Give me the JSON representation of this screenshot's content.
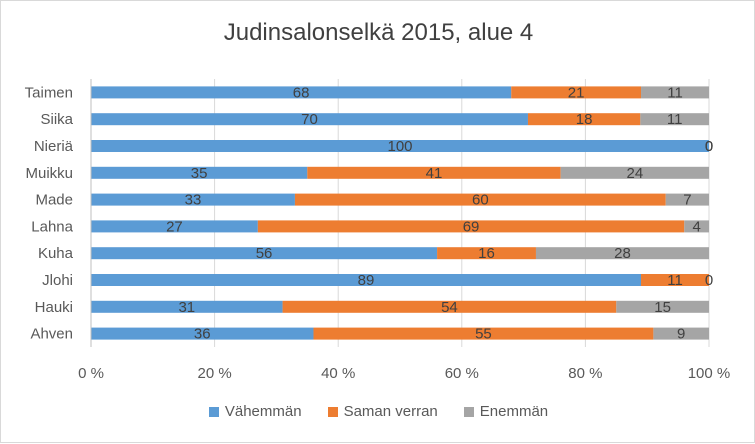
{
  "chart_data": {
    "type": "bar",
    "orientation": "horizontal",
    "stacked": "percent",
    "title": "Judinsalonselkä 2015, alue 4",
    "categories": [
      "Taimen",
      "Siika",
      "Nieriä",
      "Muikku",
      "Made",
      "Lahna",
      "Kuha",
      "Jlohi",
      "Hauki",
      "Ahven"
    ],
    "series": [
      {
        "name": "Vähemmän",
        "color": "#5b9bd5",
        "values": [
          68,
          70,
          100,
          35,
          33,
          27,
          56,
          89,
          31,
          36
        ]
      },
      {
        "name": "Saman verran",
        "color": "#ed7d31",
        "values": [
          21,
          18,
          0,
          41,
          60,
          69,
          16,
          11,
          54,
          55
        ]
      },
      {
        "name": "Enemmän",
        "color": "#a5a5a5",
        "values": [
          11,
          11,
          0,
          24,
          7,
          4,
          28,
          0,
          15,
          9
        ]
      }
    ],
    "xlim": [
      0,
      100
    ],
    "x_ticks": [
      "0 %",
      "20 %",
      "40 %",
      "60 %",
      "80 %",
      "100 %"
    ],
    "grid": true,
    "legend_position": "bottom"
  }
}
